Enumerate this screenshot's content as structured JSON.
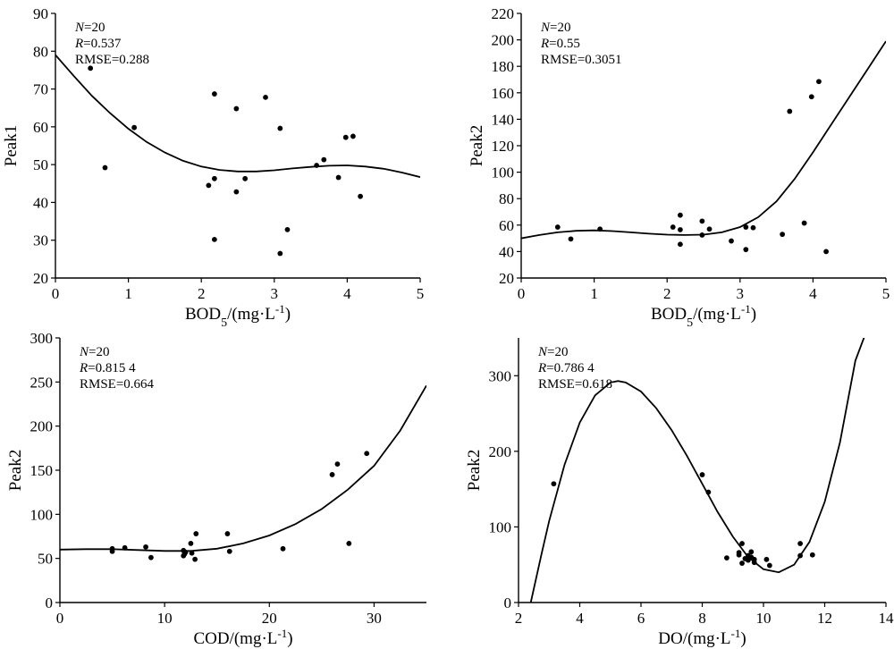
{
  "chart_data": [
    {
      "type": "scatter",
      "xlabel": "BOD",
      "xlabel_sub": "5",
      "xlabel_unit": "/(mg·L",
      "xlabel_sup": "-1",
      "xlabel_close": ")",
      "ylabel": "Peak1",
      "xlim": [
        0,
        5
      ],
      "ylim": [
        20,
        90
      ],
      "xticks": [
        0,
        1,
        2,
        3,
        4,
        5
      ],
      "yticks": [
        20,
        30,
        40,
        50,
        60,
        70,
        80,
        90
      ],
      "annotation": {
        "n_label": "N",
        "n_value": "=20",
        "r_label": "R",
        "r_value": "=0.537",
        "rmse": "RMSE=0.288"
      },
      "points": [
        [
          0.48,
          75.5
        ],
        [
          0.68,
          49.2
        ],
        [
          1.08,
          59.8
        ],
        [
          2.1,
          44.5
        ],
        [
          2.18,
          46.3
        ],
        [
          2.18,
          68.7
        ],
        [
          2.18,
          30.2
        ],
        [
          2.48,
          64.8
        ],
        [
          2.48,
          42.8
        ],
        [
          2.6,
          46.3
        ],
        [
          2.88,
          67.8
        ],
        [
          3.08,
          59.6
        ],
        [
          3.08,
          26.5
        ],
        [
          3.18,
          32.8
        ],
        [
          3.58,
          49.8
        ],
        [
          3.68,
          51.3
        ],
        [
          3.88,
          46.6
        ],
        [
          3.98,
          57.2
        ],
        [
          4.08,
          57.5
        ],
        [
          4.18,
          41.6
        ]
      ],
      "curve": [
        [
          0,
          79
        ],
        [
          0.25,
          73.5
        ],
        [
          0.5,
          68.2
        ],
        [
          0.75,
          63.6
        ],
        [
          1.0,
          59.5
        ],
        [
          1.25,
          56.0
        ],
        [
          1.5,
          53.2
        ],
        [
          1.75,
          51.0
        ],
        [
          2.0,
          49.5
        ],
        [
          2.25,
          48.6
        ],
        [
          2.5,
          48.2
        ],
        [
          2.75,
          48.2
        ],
        [
          3.0,
          48.5
        ],
        [
          3.25,
          49.0
        ],
        [
          3.5,
          49.4
        ],
        [
          3.75,
          49.7
        ],
        [
          4.0,
          49.8
        ],
        [
          4.25,
          49.5
        ],
        [
          4.5,
          48.9
        ],
        [
          4.75,
          47.9
        ],
        [
          5.0,
          46.7
        ]
      ]
    },
    {
      "type": "scatter",
      "xlabel": "BOD",
      "xlabel_sub": "5",
      "xlabel_unit": "/(mg·L",
      "xlabel_sup": "-1",
      "xlabel_close": ")",
      "ylabel": "Peak2",
      "xlim": [
        0,
        5
      ],
      "ylim": [
        20,
        220
      ],
      "xticks": [
        0,
        1,
        2,
        3,
        4,
        5
      ],
      "yticks": [
        20,
        40,
        60,
        80,
        100,
        120,
        140,
        160,
        180,
        200,
        220
      ],
      "annotation": {
        "n_label": "N",
        "n_value": "=20",
        "r_label": "R",
        "r_value": "=0.55",
        "rmse": "RMSE=0.3051"
      },
      "points": [
        [
          0.5,
          58.5
        ],
        [
          0.68,
          49.5
        ],
        [
          1.08,
          57
        ],
        [
          2.08,
          58.5
        ],
        [
          2.18,
          56.5
        ],
        [
          2.18,
          67.5
        ],
        [
          2.18,
          45.5
        ],
        [
          2.48,
          63
        ],
        [
          2.48,
          52.5
        ],
        [
          2.58,
          57
        ],
        [
          2.88,
          48
        ],
        [
          3.08,
          58.5
        ],
        [
          3.08,
          41.5
        ],
        [
          3.18,
          58
        ],
        [
          3.58,
          53
        ],
        [
          3.68,
          146
        ],
        [
          3.88,
          61.5
        ],
        [
          3.98,
          157
        ],
        [
          4.08,
          168.5
        ],
        [
          4.18,
          40
        ]
      ],
      "curve": [
        [
          0,
          50
        ],
        [
          0.25,
          52.5
        ],
        [
          0.5,
          54.5
        ],
        [
          0.75,
          55.7
        ],
        [
          1.0,
          56
        ],
        [
          1.25,
          55.5
        ],
        [
          1.5,
          54.5
        ],
        [
          1.75,
          53.5
        ],
        [
          2.0,
          52.8
        ],
        [
          2.25,
          52.5
        ],
        [
          2.5,
          52.8
        ],
        [
          2.75,
          54.5
        ],
        [
          3.0,
          58.5
        ],
        [
          3.25,
          66
        ],
        [
          3.5,
          78
        ],
        [
          3.75,
          95
        ],
        [
          4.0,
          115
        ],
        [
          4.25,
          136
        ],
        [
          4.5,
          157
        ],
        [
          4.75,
          178
        ],
        [
          5.0,
          199
        ]
      ]
    },
    {
      "type": "scatter",
      "xlabel": "COD",
      "xlabel_sub": "",
      "xlabel_unit": "/(mg·L",
      "xlabel_sup": "-1",
      "xlabel_close": ")",
      "ylabel": "Peak2",
      "xlim": [
        0,
        35
      ],
      "ylim": [
        0,
        300
      ],
      "xticks": [
        0,
        10,
        20,
        30
      ],
      "yticks": [
        0,
        50,
        100,
        150,
        200,
        250,
        300
      ],
      "annotation": {
        "n_label": "N",
        "n_value": "=20",
        "r_label": "R",
        "r_value": "=0.815 4",
        "rmse": "RMSE=0.664"
      },
      "points": [
        [
          5.0,
          61
        ],
        [
          5.0,
          58
        ],
        [
          6.2,
          62
        ],
        [
          8.2,
          63
        ],
        [
          8.7,
          51
        ],
        [
          11.8,
          53
        ],
        [
          11.8,
          59
        ],
        [
          12.0,
          57
        ],
        [
          12.5,
          67
        ],
        [
          12.6,
          56
        ],
        [
          12.9,
          49
        ],
        [
          13.0,
          78
        ],
        [
          16.0,
          78
        ],
        [
          16.2,
          58
        ],
        [
          21.3,
          61
        ],
        [
          26.0,
          145
        ],
        [
          26.5,
          157
        ],
        [
          27.6,
          67
        ],
        [
          29.3,
          169
        ],
        [
          11.9,
          55
        ]
      ],
      "curve": [
        [
          0,
          60
        ],
        [
          2.5,
          60.5
        ],
        [
          5,
          60.5
        ],
        [
          7.5,
          59.5
        ],
        [
          10,
          58.5
        ],
        [
          12.5,
          58.5
        ],
        [
          15,
          61
        ],
        [
          17.5,
          67
        ],
        [
          20,
          76
        ],
        [
          22.5,
          89
        ],
        [
          25,
          106
        ],
        [
          27.5,
          128
        ],
        [
          30,
          155
        ],
        [
          32.5,
          195
        ],
        [
          35,
          246
        ]
      ]
    },
    {
      "type": "scatter",
      "xlabel": "DO",
      "xlabel_sub": "",
      "xlabel_unit": "/(mg·L",
      "xlabel_sup": "-1",
      "xlabel_close": ")",
      "ylabel": "Peak2",
      "xlim": [
        2,
        14
      ],
      "ylim": [
        0,
        350
      ],
      "xticks": [
        2,
        4,
        6,
        8,
        10,
        12,
        14
      ],
      "yticks": [
        0,
        100,
        200,
        300
      ],
      "annotation": {
        "n_label": "N",
        "n_value": "=20",
        "r_label": "R",
        "r_value": "=0.786 4",
        "rmse": "RMSE=0.618"
      },
      "points": [
        [
          3.15,
          157
        ],
        [
          8.0,
          169
        ],
        [
          8.2,
          146
        ],
        [
          8.8,
          59
        ],
        [
          9.2,
          63
        ],
        [
          9.2,
          66
        ],
        [
          9.3,
          78
        ],
        [
          9.3,
          52
        ],
        [
          9.4,
          58
        ],
        [
          9.5,
          56
        ],
        [
          9.5,
          62
        ],
        [
          9.6,
          67
        ],
        [
          9.6,
          60
        ],
        [
          9.7,
          57
        ],
        [
          9.7,
          53
        ],
        [
          10.1,
          57
        ],
        [
          10.2,
          49
        ],
        [
          11.2,
          78
        ],
        [
          11.2,
          62
        ],
        [
          11.6,
          63
        ]
      ],
      "curve": [
        [
          2.4,
          0
        ],
        [
          2.75,
          64
        ],
        [
          3.0,
          108
        ],
        [
          3.5,
          182
        ],
        [
          4.0,
          238
        ],
        [
          4.5,
          274
        ],
        [
          5.0,
          291
        ],
        [
          5.25,
          293
        ],
        [
          5.5,
          291
        ],
        [
          6.0,
          279
        ],
        [
          6.5,
          257
        ],
        [
          7.0,
          228
        ],
        [
          7.5,
          194
        ],
        [
          8.0,
          157
        ],
        [
          8.5,
          120
        ],
        [
          9.0,
          87
        ],
        [
          9.5,
          60
        ],
        [
          10.0,
          44
        ],
        [
          10.5,
          40
        ],
        [
          11.0,
          50
        ],
        [
          11.5,
          80
        ],
        [
          12.0,
          133
        ],
        [
          12.5,
          212
        ],
        [
          13.0,
          320
        ],
        [
          13.3,
          352
        ]
      ]
    }
  ]
}
